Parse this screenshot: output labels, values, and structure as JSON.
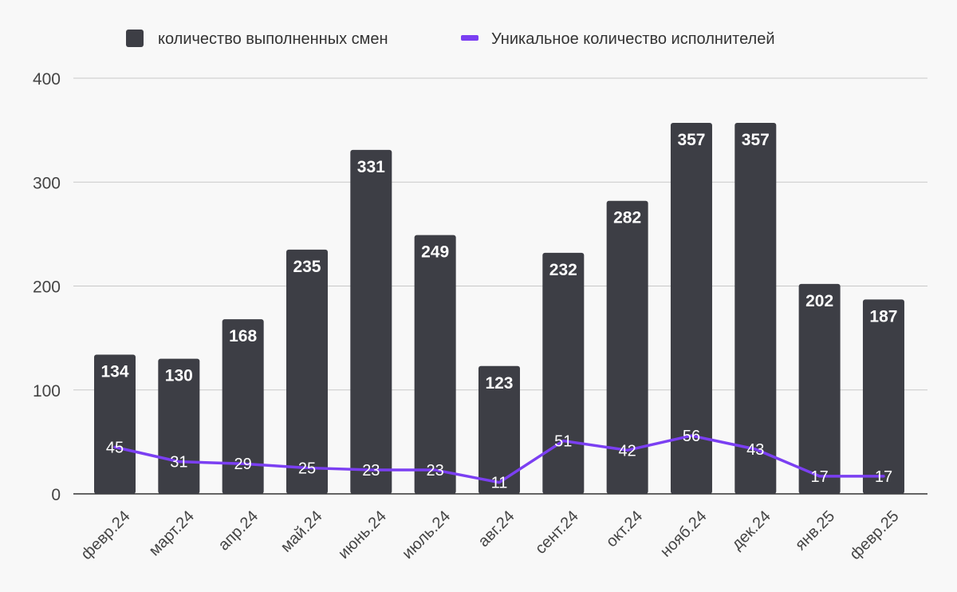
{
  "chart_data": {
    "type": "bar",
    "categories": [
      "февр.24",
      "март.24",
      "апр.24",
      "май.24",
      "июнь.24",
      "июль.24",
      "авг.24",
      "сент.24",
      "окт.24",
      "нояб.24",
      "дек.24",
      "янв.25",
      "февр.25"
    ],
    "series": [
      {
        "name": "количество выполненных смен",
        "type": "bar",
        "color": "#3d3e45",
        "values": [
          134,
          130,
          168,
          235,
          331,
          249,
          123,
          232,
          282,
          357,
          357,
          202,
          187
        ]
      },
      {
        "name": "Уникальное количество исполнителей",
        "type": "line",
        "color": "#7b3ff2",
        "values": [
          45,
          31,
          29,
          25,
          23,
          23,
          11,
          51,
          42,
          56,
          43,
          17,
          17
        ]
      }
    ],
    "yticks": [
      0,
      100,
      200,
      300,
      400
    ],
    "ylim": [
      0,
      400
    ],
    "grid": true,
    "legend_position": "top"
  }
}
